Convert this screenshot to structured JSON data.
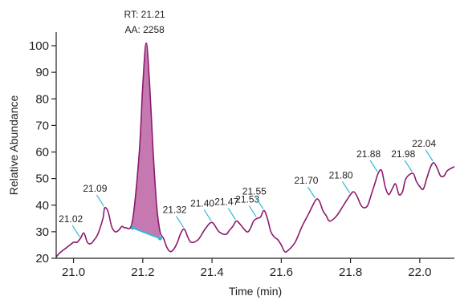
{
  "chart_data": {
    "type": "line",
    "xlabel": "Time (min)",
    "ylabel": "Relative Abundance",
    "xlim": [
      20.95,
      22.1
    ],
    "ylim": [
      20,
      100
    ],
    "x_ticks": [
      "21.0",
      "21.2",
      "21.4",
      "21.6",
      "21.8",
      "22.0"
    ],
    "y_ticks": [
      "20",
      "30",
      "40",
      "50",
      "60",
      "70",
      "80",
      "90",
      "100"
    ],
    "series": [
      {
        "color": "#8b1a6b",
        "points": [
          [
            20.95,
            20.5
          ],
          [
            20.96,
            22
          ],
          [
            20.98,
            24
          ],
          [
            21.0,
            26
          ],
          [
            21.01,
            26
          ],
          [
            21.02,
            27.5
          ],
          [
            21.03,
            29.5
          ],
          [
            21.04,
            26
          ],
          [
            21.05,
            25.5
          ],
          [
            21.06,
            27
          ],
          [
            21.07,
            29
          ],
          [
            21.085,
            35
          ],
          [
            21.09,
            39
          ],
          [
            21.1,
            37.5
          ],
          [
            21.11,
            32
          ],
          [
            21.12,
            30
          ],
          [
            21.13,
            30.5
          ],
          [
            21.14,
            32
          ],
          [
            21.15,
            31.5
          ],
          [
            21.17,
            34
          ],
          [
            21.19,
            60
          ],
          [
            21.2,
            85
          ],
          [
            21.21,
            101
          ],
          [
            21.22,
            85
          ],
          [
            21.23,
            60
          ],
          [
            21.24,
            40
          ],
          [
            21.25,
            30
          ],
          [
            21.26,
            27.5
          ],
          [
            21.27,
            24
          ],
          [
            21.28,
            22.5
          ],
          [
            21.29,
            23.5
          ],
          [
            21.3,
            26
          ],
          [
            21.31,
            29.5
          ],
          [
            21.32,
            31
          ],
          [
            21.33,
            28
          ],
          [
            21.34,
            26
          ],
          [
            21.36,
            27
          ],
          [
            21.38,
            31
          ],
          [
            21.4,
            33.5
          ],
          [
            21.42,
            30
          ],
          [
            21.44,
            29
          ],
          [
            21.45,
            30.5
          ],
          [
            21.46,
            32
          ],
          [
            21.47,
            34
          ],
          [
            21.48,
            33
          ],
          [
            21.5,
            30
          ],
          [
            21.51,
            31
          ],
          [
            21.52,
            34
          ],
          [
            21.53,
            35
          ],
          [
            21.54,
            35.5
          ],
          [
            21.55,
            38
          ],
          [
            21.56,
            35
          ],
          [
            21.57,
            30
          ],
          [
            21.58,
            28
          ],
          [
            21.59,
            27
          ],
          [
            21.6,
            25
          ],
          [
            21.61,
            22.5
          ],
          [
            21.62,
            23
          ],
          [
            21.64,
            26
          ],
          [
            21.66,
            32
          ],
          [
            21.68,
            37
          ],
          [
            21.7,
            42
          ],
          [
            21.71,
            41.5
          ],
          [
            21.72,
            38
          ],
          [
            21.73,
            36
          ],
          [
            21.74,
            34
          ],
          [
            21.76,
            36
          ],
          [
            21.78,
            40
          ],
          [
            21.8,
            44
          ],
          [
            21.81,
            45
          ],
          [
            21.82,
            43
          ],
          [
            21.83,
            40
          ],
          [
            21.84,
            39
          ],
          [
            21.85,
            40
          ],
          [
            21.86,
            44
          ],
          [
            21.87,
            48
          ],
          [
            21.88,
            52
          ],
          [
            21.89,
            53
          ],
          [
            21.9,
            47
          ],
          [
            21.91,
            44
          ],
          [
            21.92,
            46
          ],
          [
            21.93,
            48
          ],
          [
            21.94,
            44
          ],
          [
            21.95,
            45
          ],
          [
            21.96,
            50
          ],
          [
            21.98,
            52
          ],
          [
            21.99,
            49
          ],
          [
            22.0,
            47
          ],
          [
            22.01,
            46
          ],
          [
            22.02,
            50
          ],
          [
            22.03,
            54
          ],
          [
            22.04,
            56
          ],
          [
            22.05,
            54
          ],
          [
            22.06,
            51
          ],
          [
            22.07,
            51
          ],
          [
            22.08,
            53
          ],
          [
            22.1,
            54.5
          ]
        ]
      }
    ],
    "shaded_peak": {
      "color": "#c06aa8",
      "x_start": 21.17,
      "x_end": 21.25,
      "baseline_start": 31.5,
      "baseline_end": 27.5
    },
    "baseline_color": "#35b8d6",
    "peak_labels": [
      {
        "x": 21.02,
        "y": 27.5,
        "label": "21.02"
      },
      {
        "x": 21.09,
        "y": 39,
        "label": "21.09"
      },
      {
        "x": 21.32,
        "y": 31,
        "label": "21.32"
      },
      {
        "x": 21.4,
        "y": 33.5,
        "label": "21.40"
      },
      {
        "x": 21.47,
        "y": 34,
        "label": "21.47"
      },
      {
        "x": 21.53,
        "y": 35,
        "label": "21.53"
      },
      {
        "x": 21.55,
        "y": 38,
        "label": "21.55"
      },
      {
        "x": 21.7,
        "y": 42,
        "label": "21.70"
      },
      {
        "x": 21.8,
        "y": 44,
        "label": "21.80"
      },
      {
        "x": 21.88,
        "y": 52,
        "label": "21.88"
      },
      {
        "x": 21.98,
        "y": 52,
        "label": "21.98"
      },
      {
        "x": 22.04,
        "y": 56,
        "label": "22.04"
      }
    ],
    "annotations": [
      {
        "x": 21.21,
        "lines": [
          "RT: 21.21",
          "AA: 2258"
        ]
      }
    ]
  }
}
